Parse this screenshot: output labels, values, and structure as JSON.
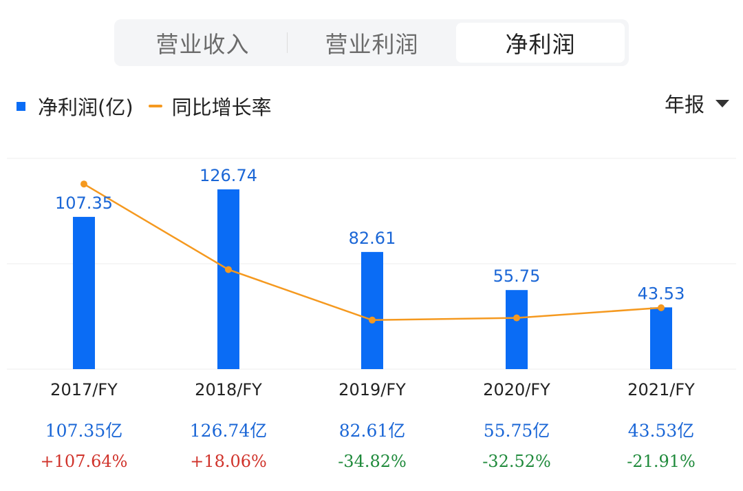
{
  "tabs": [
    {
      "label": "营业收入",
      "active": false
    },
    {
      "label": "营业利润",
      "active": false
    },
    {
      "label": "净利润",
      "active": true
    }
  ],
  "legend": {
    "bar_label": "净利润(亿)",
    "line_label": "同比增长率"
  },
  "period_selector": {
    "label": "年报"
  },
  "colors": {
    "bar": "#0a6cf5",
    "line": "#f5991f",
    "value_text": "#1a66d6",
    "positive": "#d0332b",
    "negative": "#1f8a3b"
  },
  "chart_data": {
    "type": "bar",
    "categories": [
      "2017/FY",
      "2018/FY",
      "2019/FY",
      "2020/FY",
      "2021/FY"
    ],
    "series": [
      {
        "name": "净利润(亿)",
        "type": "bar",
        "values": [
          107.35,
          126.74,
          82.61,
          55.75,
          43.53
        ]
      },
      {
        "name": "同比增长率",
        "type": "line",
        "values": [
          107.64,
          18.06,
          -34.82,
          -32.52,
          -21.91
        ]
      }
    ],
    "bar_labels": [
      "107.35",
      "126.74",
      "82.61",
      "55.75",
      "43.53"
    ],
    "grid": true
  },
  "table": {
    "values": [
      "107.35亿",
      "126.74亿",
      "82.61亿",
      "55.75亿",
      "43.53亿"
    ],
    "yoy": [
      "+107.64%",
      "+18.06%",
      "-34.82%",
      "-32.52%",
      "-21.91%"
    ]
  }
}
